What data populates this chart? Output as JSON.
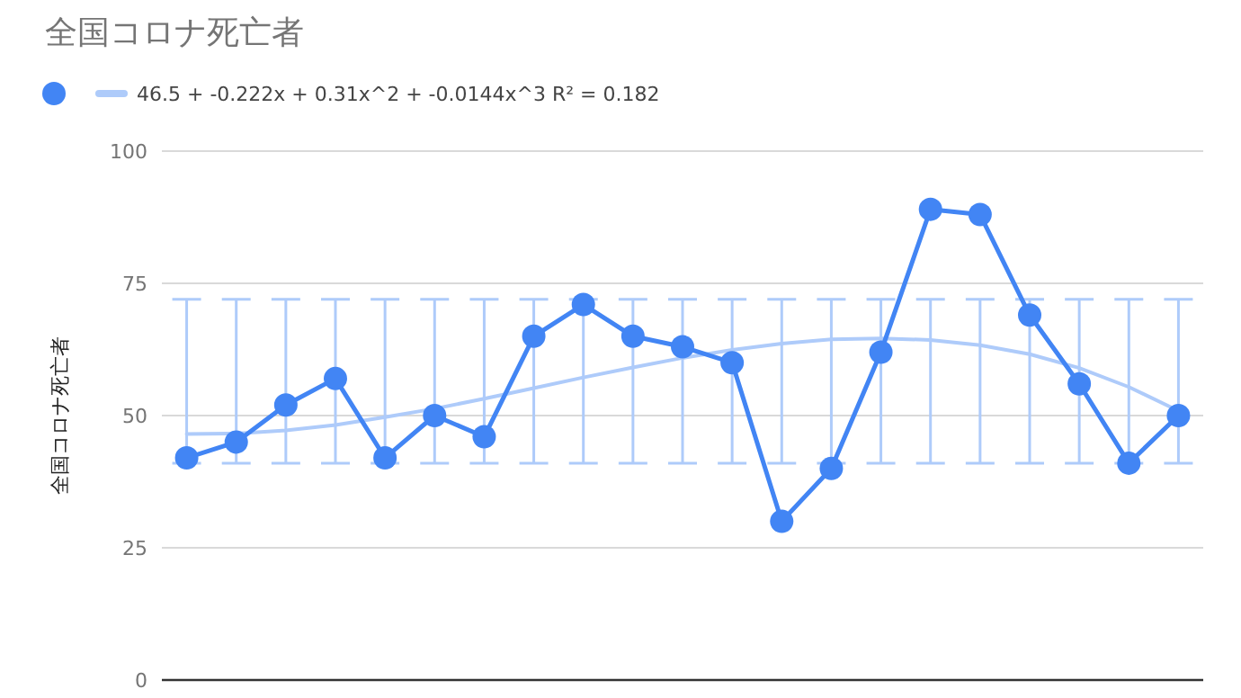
{
  "chart_data": {
    "type": "line",
    "title": "全国コロナ死亡者",
    "ylabel": "全国コロナ死亡者",
    "categories": [
      null,
      null,
      null,
      null,
      null,
      null,
      null,
      null,
      null,
      null,
      null,
      null,
      null,
      null,
      null,
      null,
      null,
      null,
      null,
      null,
      null
    ],
    "ylim": [
      0,
      100
    ],
    "yticks": [
      0,
      25,
      50,
      75,
      100
    ],
    "grid": "y",
    "legend": "top left",
    "marker": "circle",
    "series": [
      {
        "color": "#4285f4",
        "values": [
          42,
          45,
          52,
          57,
          42,
          50,
          46,
          65,
          71,
          65,
          63,
          60,
          30,
          40,
          62,
          89,
          88,
          69,
          56,
          41,
          50
        ],
        "errors": [
          [
            41,
            72
          ],
          [
            41,
            72
          ],
          [
            41,
            72
          ],
          [
            41,
            72
          ],
          [
            41,
            72
          ],
          [
            41,
            72
          ],
          [
            41,
            72
          ],
          [
            41,
            72
          ],
          [
            41,
            72
          ],
          [
            41,
            72
          ],
          [
            41,
            72
          ],
          [
            41,
            72
          ],
          [
            41,
            72
          ],
          [
            41,
            72
          ],
          [
            41,
            72
          ],
          [
            41,
            72
          ],
          [
            41,
            72
          ],
          [
            41,
            72
          ],
          [
            41,
            72
          ],
          [
            41,
            72
          ],
          [
            41,
            72
          ]
        ]
      },
      {
        "name": "46.5 + -0.222x + 0.31x^2 + -0.0144x^3 R² = 0.182",
        "color": "#aecbfa",
        "marker": "none",
        "values": [
          46.5,
          46.6,
          47.2,
          48.2,
          49.7,
          51.3,
          53.2,
          55.2,
          57.2,
          59.1,
          60.9,
          62.4,
          63.6,
          64.4,
          64.6,
          64.3,
          63.3,
          61.6,
          59.0,
          55.4,
          50.9
        ]
      }
    ]
  }
}
